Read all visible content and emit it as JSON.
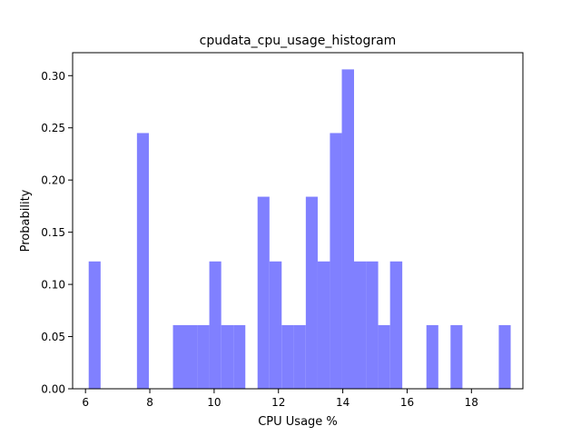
{
  "chart_data": {
    "type": "bar",
    "title": "cpudata_cpu_usage_histogram",
    "xlabel": "CPU Usage %",
    "ylabel": "Probability",
    "xlim": [
      5.6,
      19.6
    ],
    "ylim": [
      0,
      0.322
    ],
    "xticks": [
      6,
      8,
      10,
      12,
      14,
      16,
      18
    ],
    "yticks": [
      0.0,
      0.05,
      0.1,
      0.15,
      0.2,
      0.25,
      0.3
    ],
    "ytick_labels": [
      "0.00",
      "0.05",
      "0.10",
      "0.15",
      "0.20",
      "0.25",
      "0.30"
    ],
    "bar_color": "#8080ff",
    "grid": false,
    "legend": "none",
    "bins": [
      {
        "x0": 6.1,
        "x1": 6.47,
        "value": 0.122
      },
      {
        "x0": 7.6,
        "x1": 7.97,
        "value": 0.245
      },
      {
        "x0": 8.72,
        "x1": 9.1,
        "value": 0.061
      },
      {
        "x0": 9.1,
        "x1": 9.47,
        "value": 0.061
      },
      {
        "x0": 9.47,
        "x1": 9.85,
        "value": 0.061
      },
      {
        "x0": 9.85,
        "x1": 10.22,
        "value": 0.122
      },
      {
        "x0": 10.22,
        "x1": 10.6,
        "value": 0.061
      },
      {
        "x0": 10.6,
        "x1": 10.97,
        "value": 0.061
      },
      {
        "x0": 11.35,
        "x1": 11.72,
        "value": 0.184
      },
      {
        "x0": 11.72,
        "x1": 12.1,
        "value": 0.122
      },
      {
        "x0": 12.1,
        "x1": 12.47,
        "value": 0.061
      },
      {
        "x0": 12.47,
        "x1": 12.85,
        "value": 0.061
      },
      {
        "x0": 12.85,
        "x1": 13.22,
        "value": 0.184
      },
      {
        "x0": 13.22,
        "x1": 13.6,
        "value": 0.122
      },
      {
        "x0": 13.6,
        "x1": 13.97,
        "value": 0.245
      },
      {
        "x0": 13.97,
        "x1": 14.35,
        "value": 0.306
      },
      {
        "x0": 14.35,
        "x1": 14.72,
        "value": 0.122
      },
      {
        "x0": 14.72,
        "x1": 15.1,
        "value": 0.122
      },
      {
        "x0": 15.1,
        "x1": 15.47,
        "value": 0.061
      },
      {
        "x0": 15.47,
        "x1": 15.85,
        "value": 0.122
      },
      {
        "x0": 16.6,
        "x1": 16.97,
        "value": 0.061
      },
      {
        "x0": 17.35,
        "x1": 17.72,
        "value": 0.061
      },
      {
        "x0": 18.85,
        "x1": 19.22,
        "value": 0.061
      }
    ]
  }
}
